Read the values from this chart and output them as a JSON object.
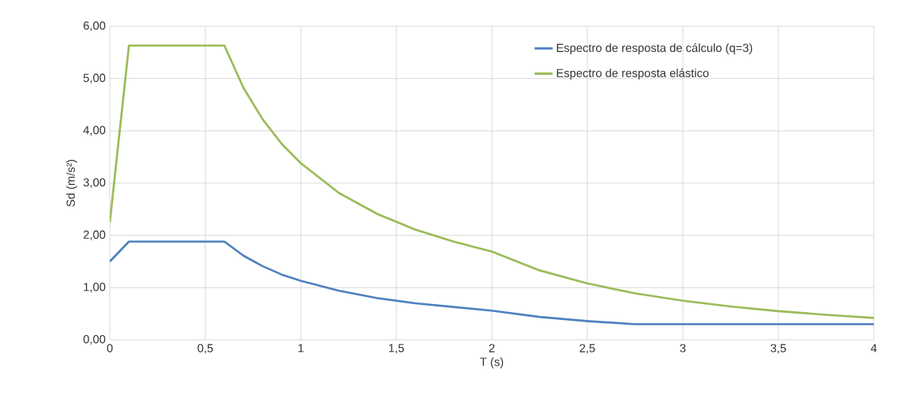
{
  "chart_data": {
    "type": "line",
    "xlabel": "T (s)",
    "ylabel": "Sd (m/s²)",
    "x": [
      0,
      0.1,
      0.6,
      0.7,
      0.8,
      0.9,
      1.0,
      1.2,
      1.4,
      1.6,
      1.8,
      2.0,
      2.25,
      2.5,
      2.75,
      3.0,
      3.25,
      3.5,
      3.75,
      4.0
    ],
    "series": [
      {
        "name": "Espectro de resposta de cálculo (q=3)",
        "color": "#4f81bd",
        "values": [
          1.5,
          1.88,
          1.88,
          1.61,
          1.41,
          1.25,
          1.13,
          0.94,
          0.8,
          0.7,
          0.63,
          0.56,
          0.44,
          0.36,
          0.3,
          0.3,
          0.3,
          0.3,
          0.3,
          0.3
        ]
      },
      {
        "name": "Espectro de resposta elástico",
        "color": "#9bbb59",
        "values": [
          2.25,
          5.63,
          5.63,
          4.82,
          4.22,
          3.75,
          3.38,
          2.81,
          2.41,
          2.11,
          1.88,
          1.69,
          1.33,
          1.08,
          0.89,
          0.75,
          0.64,
          0.55,
          0.48,
          0.42
        ]
      }
    ],
    "xlim": [
      0,
      4
    ],
    "xticks": [
      0,
      {
        "value": 0.5,
        "label": "0,5"
      },
      1,
      {
        "value": 1.5,
        "label": "1,5"
      },
      2,
      {
        "value": 2.5,
        "label": "2,5"
      },
      3,
      {
        "value": 3.5,
        "label": "3,5"
      },
      4
    ],
    "ylim": [
      0,
      6
    ],
    "yticks": [
      {
        "value": 0,
        "label": "0,00"
      },
      {
        "value": 1,
        "label": "1,00"
      },
      {
        "value": 2,
        "label": "2,00"
      },
      {
        "value": 3,
        "label": "3,00"
      },
      {
        "value": 4,
        "label": "4,00"
      },
      {
        "value": 5,
        "label": "5,00"
      },
      {
        "value": 6,
        "label": "6,00"
      }
    ],
    "grid": true,
    "legend": "top right",
    "marker": "none",
    "line_style": "solid"
  }
}
